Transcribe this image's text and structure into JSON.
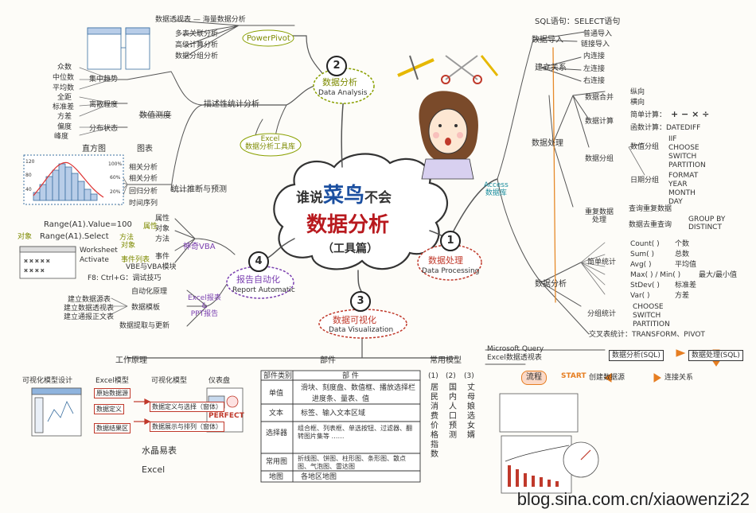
{
  "center": {
    "line1a": "谁说",
    "line1b": "菜鸟",
    "line1c": "不会",
    "line2": "数据分析",
    "line3": "（工具篇）"
  },
  "sections": {
    "s1": {
      "num": "1",
      "cn": "数据处理",
      "en": "Data Processing"
    },
    "s2": {
      "num": "2",
      "cn": "数据分析",
      "en": "Data Analysis"
    },
    "s3": {
      "num": "3",
      "cn": "数据可视化",
      "en": "Data Visualization"
    },
    "s4": {
      "num": "4",
      "cn": "报告自动化",
      "en": "Report Automatic"
    }
  },
  "analysis": {
    "powerpivot": "PowerPivot",
    "pp_items": [
      "数据透视表 — 海量数据分析",
      "多表关联分析",
      "高级计算分析",
      "数据分组分析"
    ],
    "excel_tool": "Excel\n数据分析工具库",
    "describe": "描述性统计分析",
    "measure": "数值测度",
    "measure_items": [
      "集中趋势",
      "离散程度",
      "分布状态"
    ],
    "central": [
      "众数",
      "中位数",
      "平均数"
    ],
    "spread": [
      "全距",
      "标准差",
      "方差"
    ],
    "shape": [
      "偏度",
      "峰度"
    ],
    "hist_label": "直方图",
    "chart_label": "图表",
    "infer": "统计推断与预测",
    "infer_items": [
      "相关分析",
      "相关分析",
      "回归分析",
      "时间序列"
    ]
  },
  "report": {
    "vba": "神奇VBA",
    "vba_items": [
      "属性",
      "对象",
      "方法",
      "事件",
      "VBE与VBA模块"
    ],
    "code1": "Range(A1).Value=100",
    "code1_tag": "属性",
    "code2": "Range(A1).Select",
    "code2_obj": "对象",
    "code2_tag": "方法",
    "ws1": "Worksheet",
    "ws1_tag": "对象",
    "ws2": "Activate",
    "ws2_tag": "事件列表",
    "f8": "F8: Ctrl+G：调试技巧",
    "excel_ppt": "Excel报表\n&\nPPT报告",
    "auto_items": [
      "自动化原理",
      "数据模板",
      "数据提取与更新"
    ],
    "auto_sub": [
      "建立数据源表",
      "建立数据透视表",
      "建立通报正文表"
    ]
  },
  "processing": {
    "sql": "SQL语句：SELECT语句",
    "import": "数据导入",
    "import_items": [
      "普通导入",
      "链接导入"
    ],
    "relate": "建立关系",
    "relate_items": [
      "内连接",
      "左连接",
      "右连接"
    ],
    "process": "数据处理",
    "merge": "数据合并",
    "merge_items": [
      "纵向",
      "横向"
    ],
    "calc": "数据计算",
    "calc_simple": "简单计算：",
    "calc_ops": "+ − × ÷",
    "calc_func": "函数计算：DATEDIFF",
    "group": "数据分组",
    "group_num": "数值分组",
    "group_num_items": [
      "IIF",
      "CHOOSE",
      "SWITCH",
      "PARTITION"
    ],
    "group_date": "日期分组",
    "group_date_items": [
      "FORMAT",
      "YEAR",
      "MONTH",
      "DAY"
    ],
    "dup": "重复数据\n处理",
    "dup_items": [
      "查询重复数据",
      "数据去重查询"
    ],
    "dup_sub": "GROUP BY\nDISTINCT",
    "access": "Access\n数据库",
    "analyze": "数据分析",
    "simple_stat": "简单统计",
    "funcs": [
      [
        "Count( )",
        "个数"
      ],
      [
        "Sum( )",
        "总数"
      ],
      [
        "Avg( )",
        "平均值"
      ],
      [
        "Max( ) / Min( )",
        "最大/最小值"
      ],
      [
        "StDev( )",
        "标准差"
      ],
      [
        "Var( )",
        "方差"
      ]
    ],
    "group_stat": "分组统计",
    "group_stat_items": [
      "CHOOSE",
      "SWITCH",
      "PARTITION"
    ],
    "cross": "交叉表统计：TRANSFORM、PIVOT",
    "flow_a": "数据分析(SQL)",
    "flow_b": "数据处理(SQL)",
    "msquery": "Microsoft Query\nExcel数据透视表",
    "flow_label": "流程",
    "flow_start": "START",
    "flow_c": "创建数据源",
    "flow_d": "连接关系"
  },
  "vis": {
    "principle": "工作原理",
    "parts": "部件",
    "types": "常用模型",
    "p_items": [
      "可视化模型设计",
      "Excel模型",
      "可视化模型",
      "仪表盘"
    ],
    "p_steps": [
      "原始数据源",
      "数据定义",
      "数据结果区"
    ],
    "p_arrows": [
      "数据定义与选择（窗体）",
      "数据展示与排列（窗体）"
    ],
    "perfect": "PERFECT",
    "crystal": "水晶易表",
    "excel": "Excel",
    "table_header": [
      "部件类别",
      "部  件"
    ],
    "table_rows": [
      [
        "单值",
        "滑块、刻度盘、数值框、播放选择栏"
      ],
      [
        "",
        "进度条、量表、值"
      ],
      [
        "文本",
        "标签、输入文本区域"
      ],
      [
        "选择器",
        "组合框、列表框、单选按钮、过滤器、翻转图片集等 ……"
      ],
      [
        "常用图",
        "折线图、饼图、柱形图、条形图、散点图、气泡图、雷达图"
      ],
      [
        "地图",
        "各地区地图"
      ]
    ],
    "cols": [
      [
        "(1)",
        "居民消费价格指数"
      ],
      [
        "(2)",
        "国内人口预测"
      ],
      [
        "(3)",
        "丈母娘选女婿"
      ]
    ]
  },
  "footer": {
    "watermark": "blog.sina.com.cn/xiaowenzi22"
  }
}
